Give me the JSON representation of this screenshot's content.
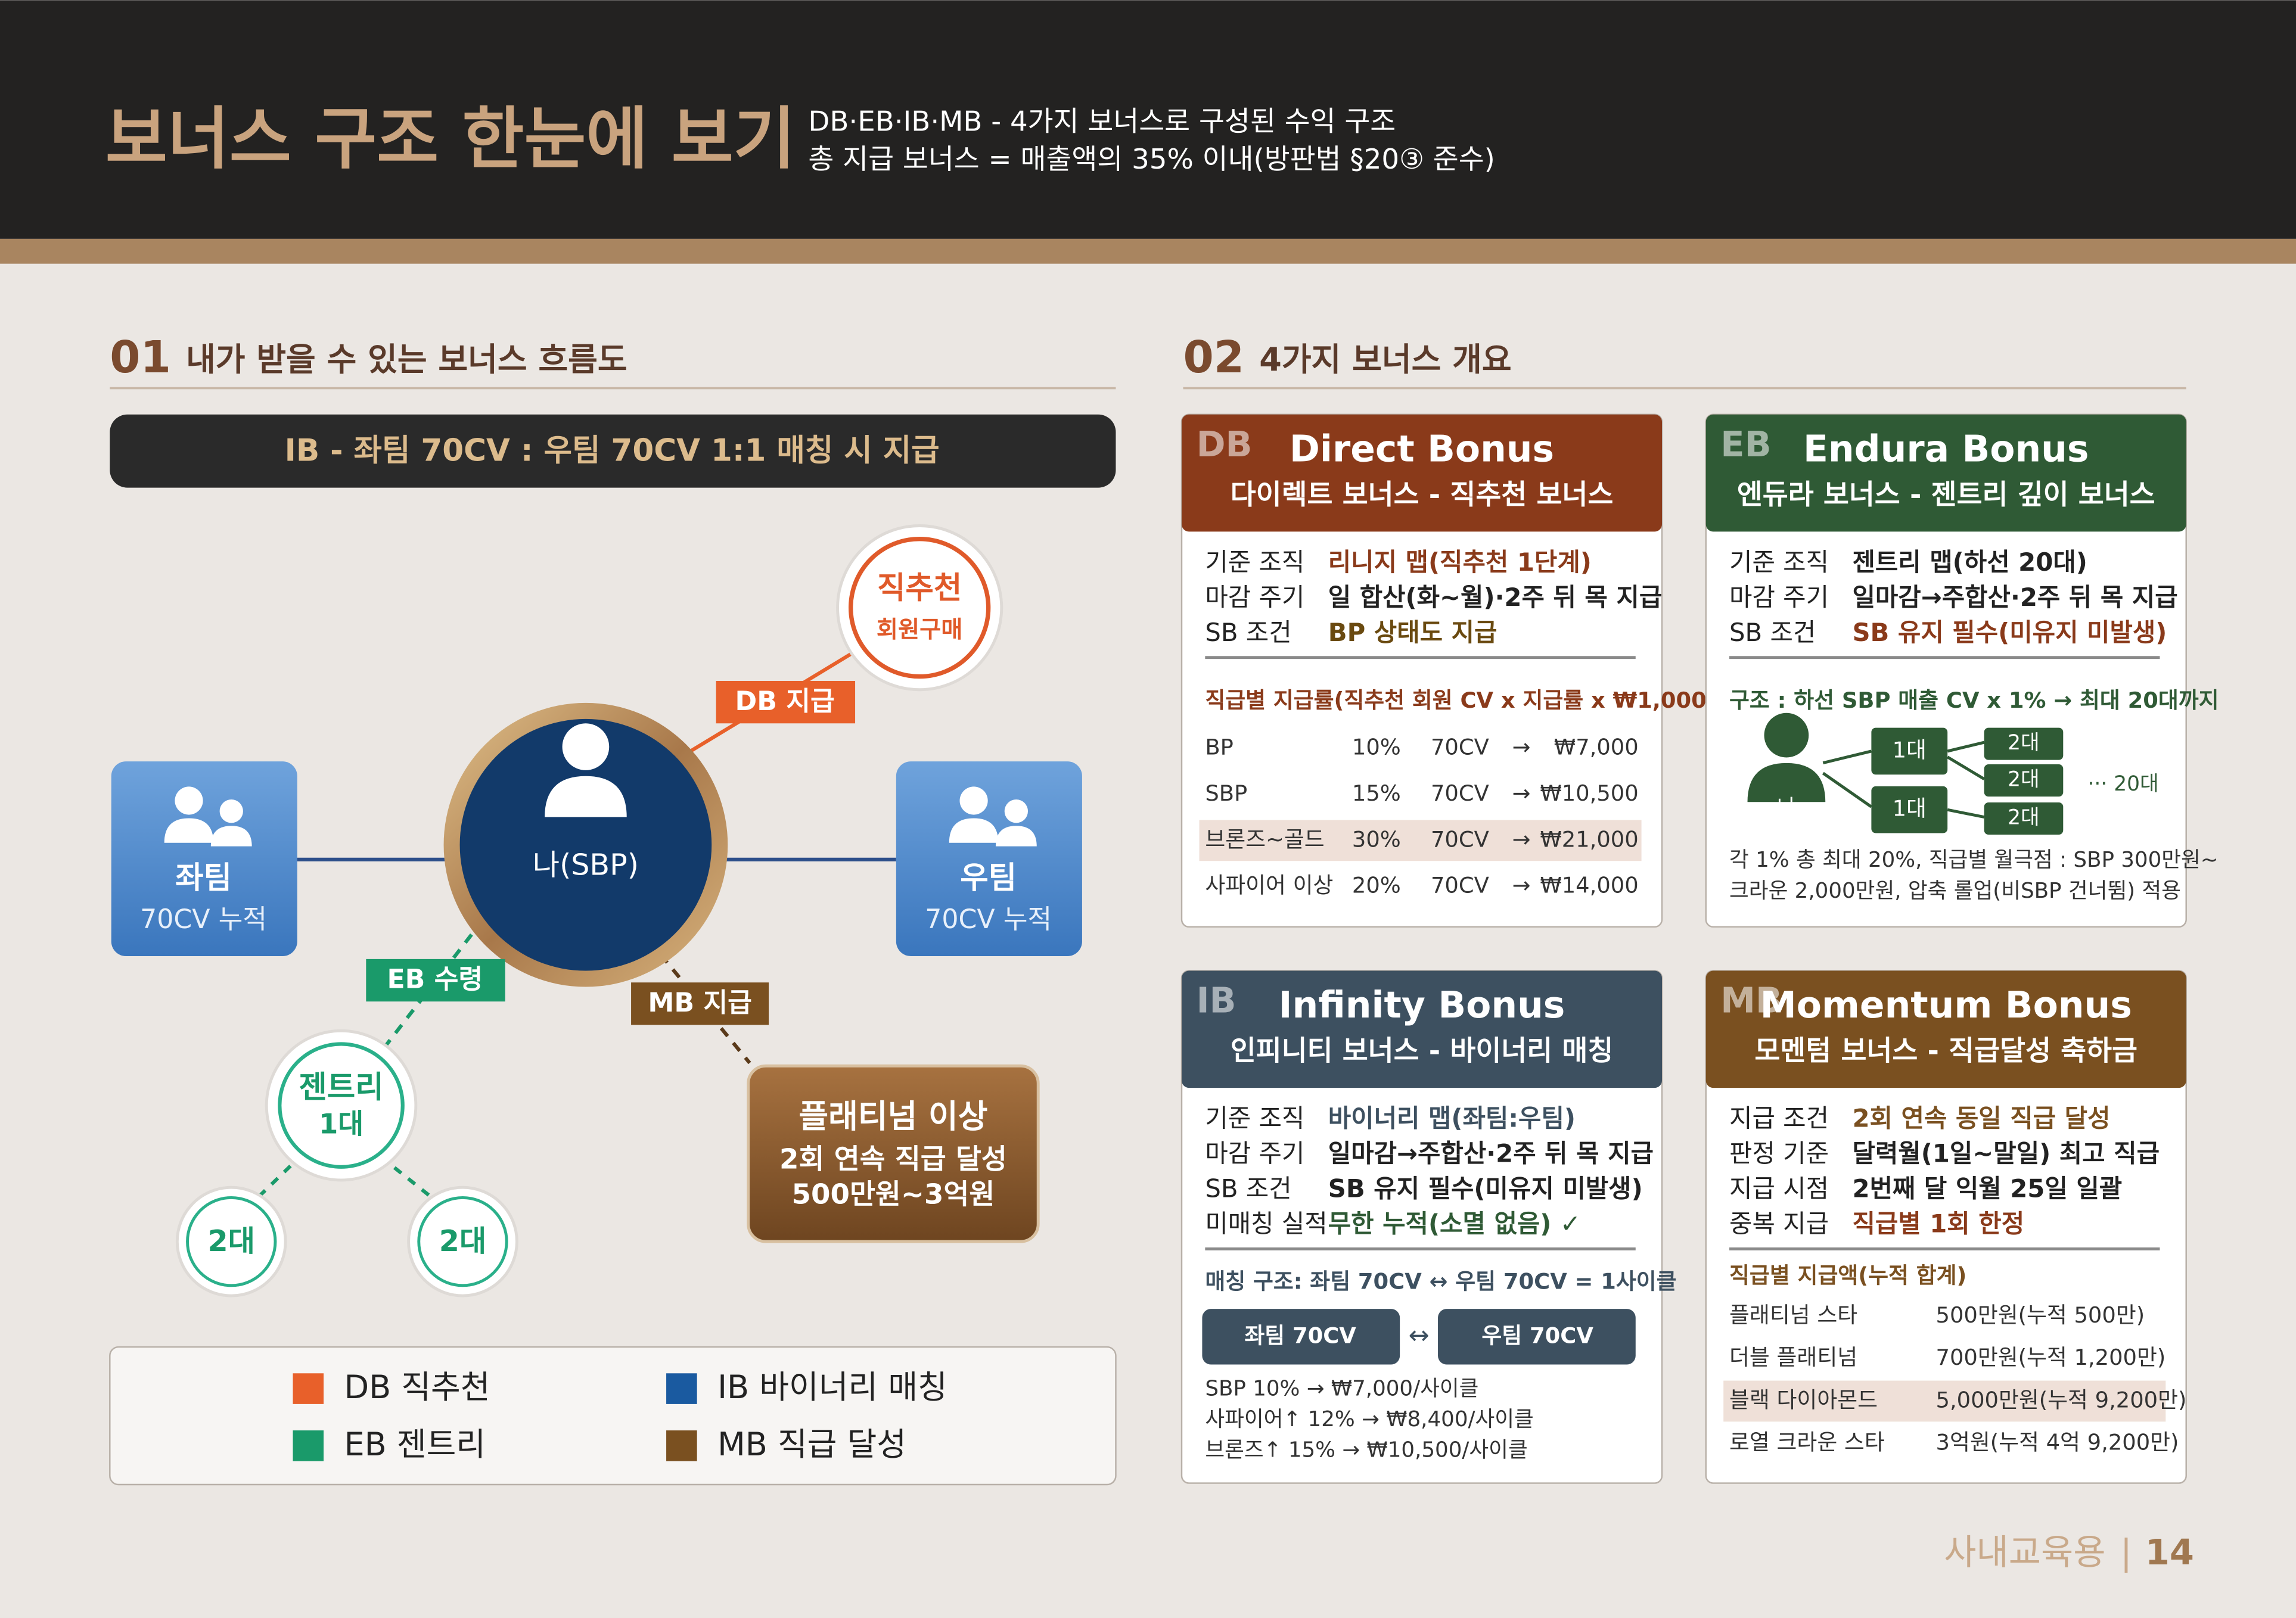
{
  "header": {
    "title": "보너스 구조 한눈에 보기",
    "subtitle_lines": [
      "DB·EB·IB·MB - 4가지 보너스로 구성된 수익 구조",
      "총 지급 보너스 = 매출액의 35% 이내(방판법 §20③ 준수)"
    ]
  },
  "section1": {
    "number": "01",
    "title": "내가 받을 수 있는 보너스 흐름도",
    "banner": "IB - 좌팀 70CV : 우팀 70CV 1:1 매칭 시 지급",
    "diagram": {
      "direct": [
        "직추천",
        "회원구매"
      ],
      "db_label": "DB 지급",
      "left": [
        "좌팀",
        "70CV 누적"
      ],
      "right": [
        "우팀",
        "70CV 누적"
      ],
      "center": "나(SBP)",
      "eb_label": "EB 수령",
      "mb_label": "MB 지급",
      "gentry": [
        "젠트리",
        "1대"
      ],
      "gen2": [
        "2대",
        "2대"
      ],
      "platinum": [
        "플래티넘 이상",
        "2회 연속 직급 달성",
        "500만원~3억원"
      ]
    },
    "legend": [
      "DB 직추천",
      "IB 바이너리 매칭",
      "EB 젠트리",
      "MB 직급 달성"
    ]
  },
  "section2": {
    "number": "02",
    "title": "4가지 보너스 개요",
    "cards": [
      {
        "code": "DB",
        "name": "Direct Bonus",
        "subtitle": "다이렉트 보너스 - 직추천 보너스",
        "rows": [
          [
            "기준 조직",
            "리니지 맵(직추천 1단계)"
          ],
          [
            "마감 주기",
            "일 합산(화~월)·2주 뒤 목 지급"
          ],
          [
            "SB 조건",
            "BP 상태도 지급"
          ]
        ],
        "table_title": "직급별 지급률(직추천 회원 CV x 지급률 x ₩1,000)",
        "table": [
          [
            "BP",
            "10%",
            "70CV",
            "→",
            "₩7,000"
          ],
          [
            "SBP",
            "15%",
            "70CV",
            "→",
            "₩10,500"
          ],
          [
            "브론즈~골드",
            "30%",
            "70CV",
            "→",
            "₩21,000"
          ],
          [
            "사파이어 이상",
            "20%",
            "70CV",
            "→",
            "₩14,000"
          ]
        ]
      },
      {
        "code": "EB",
        "name": "Endura Bonus",
        "subtitle": "엔듀라 보너스 - 젠트리 깊이 보너스",
        "rows": [
          [
            "기준 조직",
            "젠트리 맵(하선 20대)"
          ],
          [
            "마감 주기",
            "일마감→주합산·2주 뒤 목 지급"
          ],
          [
            "SB 조건",
            "SB 유지 필수(미유지 미발생)"
          ]
        ],
        "structure": "구조 : 하선 SBP 매출 CV x 1% → 최대 20대까지",
        "tree": {
          "me": "나",
          "gen1": [
            "1대",
            "1대"
          ],
          "gen2": [
            "2대",
            "2대",
            "2대"
          ],
          "more": "··· 20대"
        },
        "notes": [
          "각 1% 총 최대 20%, 직급별 월극점 : SBP 300만원~",
          "크라운 2,000만원, 압축 롤업(비SBP 건너뜀) 적용"
        ]
      },
      {
        "code": "IB",
        "name": "Infinity Bonus",
        "subtitle": "인피니티 보너스 - 바이너리 매칭",
        "rows": [
          [
            "기준 조직",
            "바이너리 맵(좌팀:우팀)"
          ],
          [
            "마감 주기",
            "일마감→주합산·2주 뒤 목 지급"
          ],
          [
            "SB 조건",
            "SB 유지 필수(미유지 미발생)"
          ],
          [
            "미매칭 실적",
            "무한 누적(소멸 없음) ✓"
          ]
        ],
        "matching_title": "매칭 구조: 좌팀 70CV ↔ 우팀 70CV = 1사이클",
        "matching": [
          "좌팀 70CV",
          "↔",
          "우팀 70CV"
        ],
        "lines": [
          "SBP 10% → ₩7,000/사이클",
          "사파이어↑ 12% → ₩8,400/사이클",
          "브론즈↑ 15% → ₩10,500/사이클"
        ]
      },
      {
        "code": "MB",
        "name": "Momentum  Bonus",
        "subtitle": "모멘텀 보너스 - 직급달성 축하금",
        "rows": [
          [
            "지급 조건",
            "2회 연속 동일 직급 달성"
          ],
          [
            "판정 기준",
            "달력월(1일~말일) 최고 직급"
          ],
          [
            "지급 시점",
            "2번째 달 익월 25일 일괄"
          ],
          [
            "중복 지급",
            "직급별 1회 한정"
          ]
        ],
        "table_title": "직급별 지급액(누적 합계)",
        "table": [
          [
            "플래티넘 스타",
            "500만원(누적 500만)"
          ],
          [
            "더블 플래티넘",
            "700만원(누적 1,200만)"
          ],
          [
            "블랙 다이아몬드",
            "5,000만원(누적 9,200만)"
          ],
          [
            "로열 크라운 스타",
            "3억원(누적 4억 9,200만)"
          ]
        ]
      }
    ]
  },
  "footer": {
    "label": "사내교육용",
    "separator": "|",
    "page": "14"
  }
}
